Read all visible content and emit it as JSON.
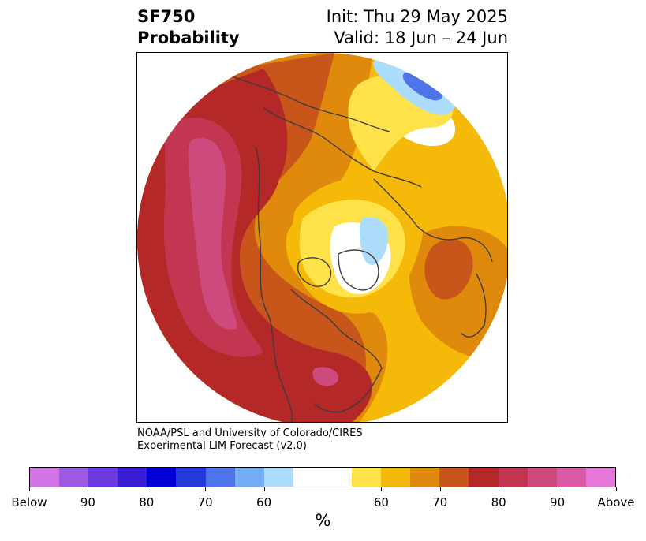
{
  "header": {
    "title_line1": "SF750",
    "title_line2": "Probability",
    "init": "Init: Thu 29 May 2025",
    "valid": "Valid: 18 Jun – 24 Jun"
  },
  "credit": {
    "line1": "NOAA/PSL and University of Colorado/CIRES",
    "line2": "Experimental LIM Forecast (v2.0)"
  },
  "colorbar": {
    "unit": "%",
    "ticks": [
      "Below",
      "90",
      "80",
      "70",
      "60",
      "60",
      "70",
      "80",
      "90",
      "Above"
    ],
    "colors": [
      "#d275e6",
      "#9b5ae0",
      "#6c3ce0",
      "#3a1ed6",
      "#0000d2",
      "#2339dc",
      "#4d74e8",
      "#73acf2",
      "#acdcfb",
      "#ffffff",
      "#ffe24a",
      "#f5b90a",
      "#e08a0d",
      "#c8561a",
      "#b42828",
      "#c23651",
      "#cc4a7c",
      "#d95ba6",
      "#e676d9"
    ]
  },
  "legend": {
    "colors": {
      "darkred": "#b42828",
      "orange": "#c8561a",
      "amber": "#e08a0d",
      "gold": "#f5b90a",
      "yellow": "#ffe24a",
      "pink": "#cc4a7c",
      "lightblue": "#acdcfb",
      "blue": "#4d74e8",
      "coast": "#3c3c3c"
    }
  }
}
